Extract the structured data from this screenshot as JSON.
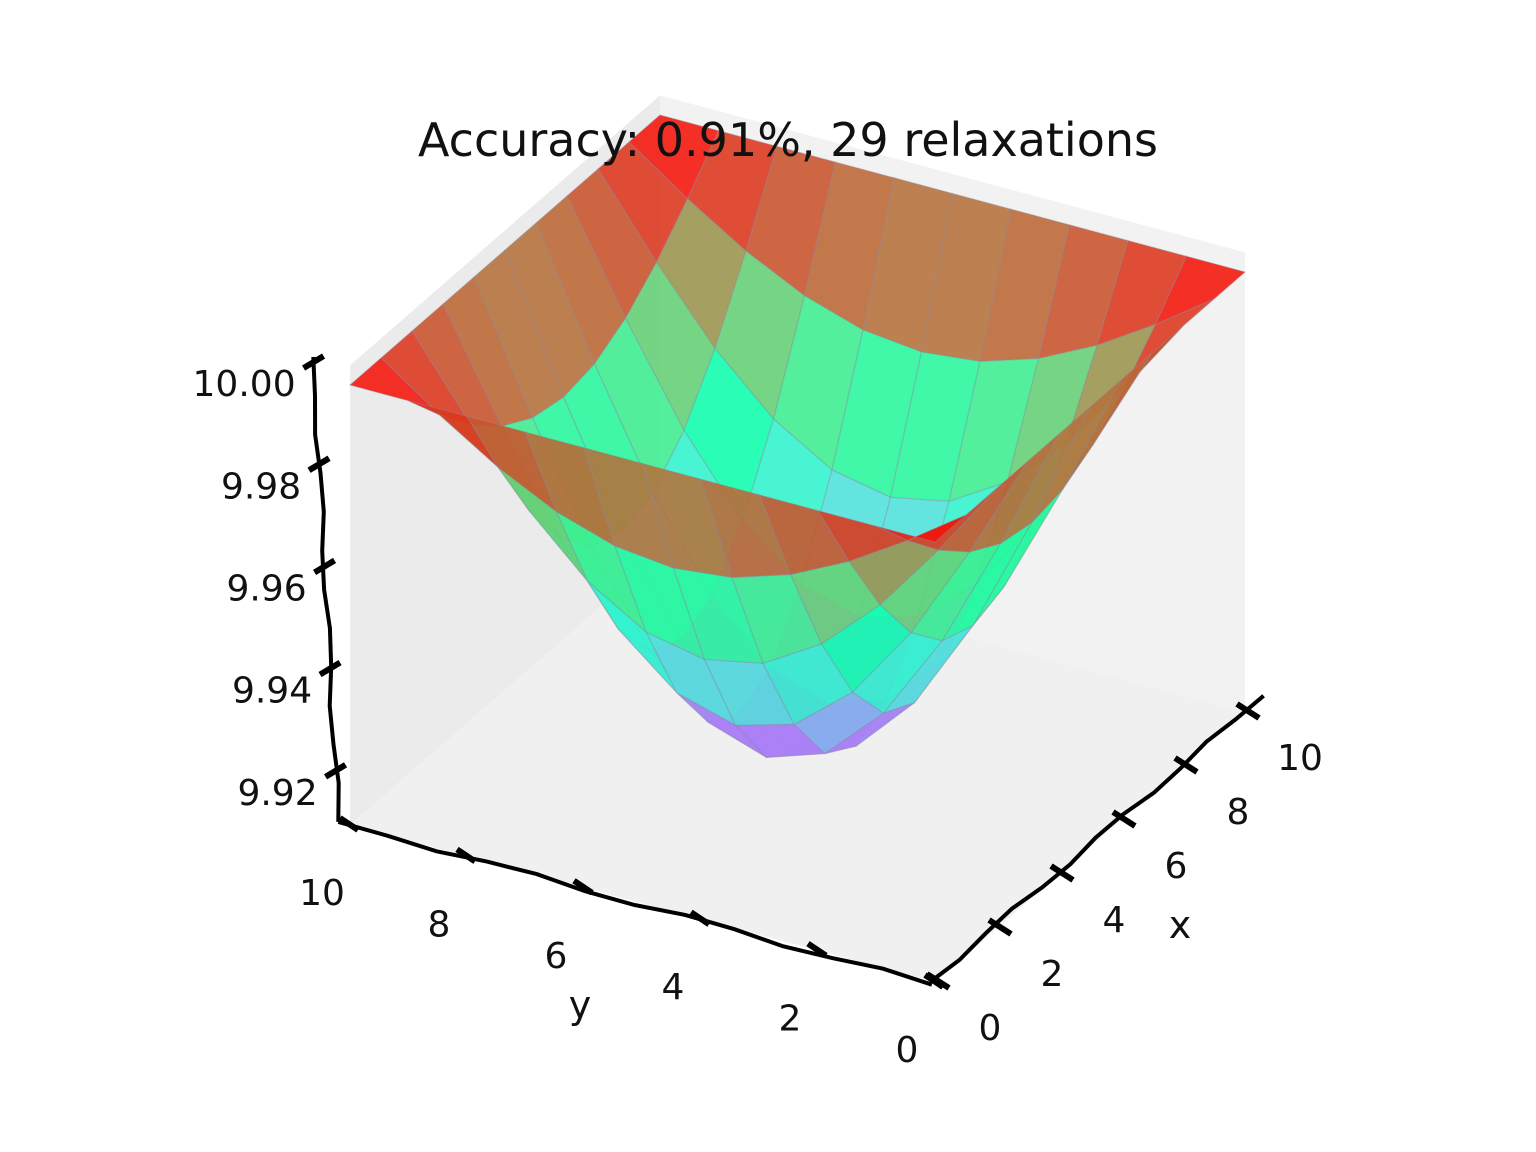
{
  "chart_data": {
    "type": "surface",
    "title": "Accuracy: 0.91%, 29 relaxations",
    "xlabel": "x",
    "ylabel": "y",
    "zlabel": "",
    "x": [
      0,
      1,
      2,
      3,
      4,
      5,
      6,
      7,
      8,
      9,
      10
    ],
    "y": [
      0,
      1,
      2,
      3,
      4,
      5,
      6,
      7,
      8,
      9,
      10
    ],
    "x_ticks": [
      "0",
      "2",
      "4",
      "6",
      "8",
      "10"
    ],
    "y_ticks": [
      "0",
      "2",
      "4",
      "6",
      "8",
      "10"
    ],
    "z_ticks": [
      "9.92",
      "9.94",
      "9.96",
      "9.98",
      "10.00"
    ],
    "xlim": [
      0,
      10
    ],
    "ylim": [
      0,
      10
    ],
    "zlim": [
      9.91,
      10.0
    ],
    "boundary_value": 10.0,
    "min_value": 9.91,
    "colormap": "rainbow",
    "grid": false,
    "z": [
      [
        10.0,
        10.0,
        10.0,
        10.0,
        10.0,
        10.0,
        10.0,
        10.0,
        10.0,
        10.0,
        10.0
      ],
      [
        10.0,
        9.9916,
        9.9841,
        9.9782,
        9.9744,
        9.9731,
        9.9744,
        9.9782,
        9.9841,
        9.9916,
        10.0
      ],
      [
        10.0,
        9.9841,
        9.9697,
        9.9585,
        9.9513,
        9.9489,
        9.9513,
        9.9585,
        9.9697,
        9.9841,
        10.0
      ],
      [
        10.0,
        9.9782,
        9.9585,
        9.9431,
        9.9333,
        9.9299,
        9.9333,
        9.9431,
        9.9585,
        9.9782,
        10.0
      ],
      [
        10.0,
        9.9744,
        9.9513,
        9.9333,
        9.9218,
        9.9178,
        9.9218,
        9.9333,
        9.9513,
        9.9744,
        10.0
      ],
      [
        10.0,
        9.9731,
        9.9489,
        9.9299,
        9.9178,
        9.9136,
        9.9178,
        9.9299,
        9.9489,
        9.9731,
        10.0
      ],
      [
        10.0,
        9.9744,
        9.9513,
        9.9333,
        9.9218,
        9.9178,
        9.9218,
        9.9333,
        9.9513,
        9.9744,
        10.0
      ],
      [
        10.0,
        9.9782,
        9.9585,
        9.9431,
        9.9333,
        9.9299,
        9.9333,
        9.9431,
        9.9585,
        9.9782,
        10.0
      ],
      [
        10.0,
        9.9841,
        9.9697,
        9.9585,
        9.9513,
        9.9489,
        9.9513,
        9.9585,
        9.9697,
        9.9841,
        10.0
      ],
      [
        10.0,
        9.9916,
        9.9841,
        9.9782,
        9.9744,
        9.9731,
        9.9744,
        9.9782,
        9.9841,
        9.9916,
        10.0
      ],
      [
        10.0,
        10.0,
        10.0,
        10.0,
        10.0,
        10.0,
        10.0,
        10.0,
        10.0,
        10.0,
        10.0
      ]
    ]
  },
  "colors": {
    "pane_left": "#ebebeb",
    "pane_right": "#f2f2f2",
    "pane_floor": "#f0f0f0",
    "axis_line": "#000000",
    "mesh_edge": "#8a8aa0"
  }
}
